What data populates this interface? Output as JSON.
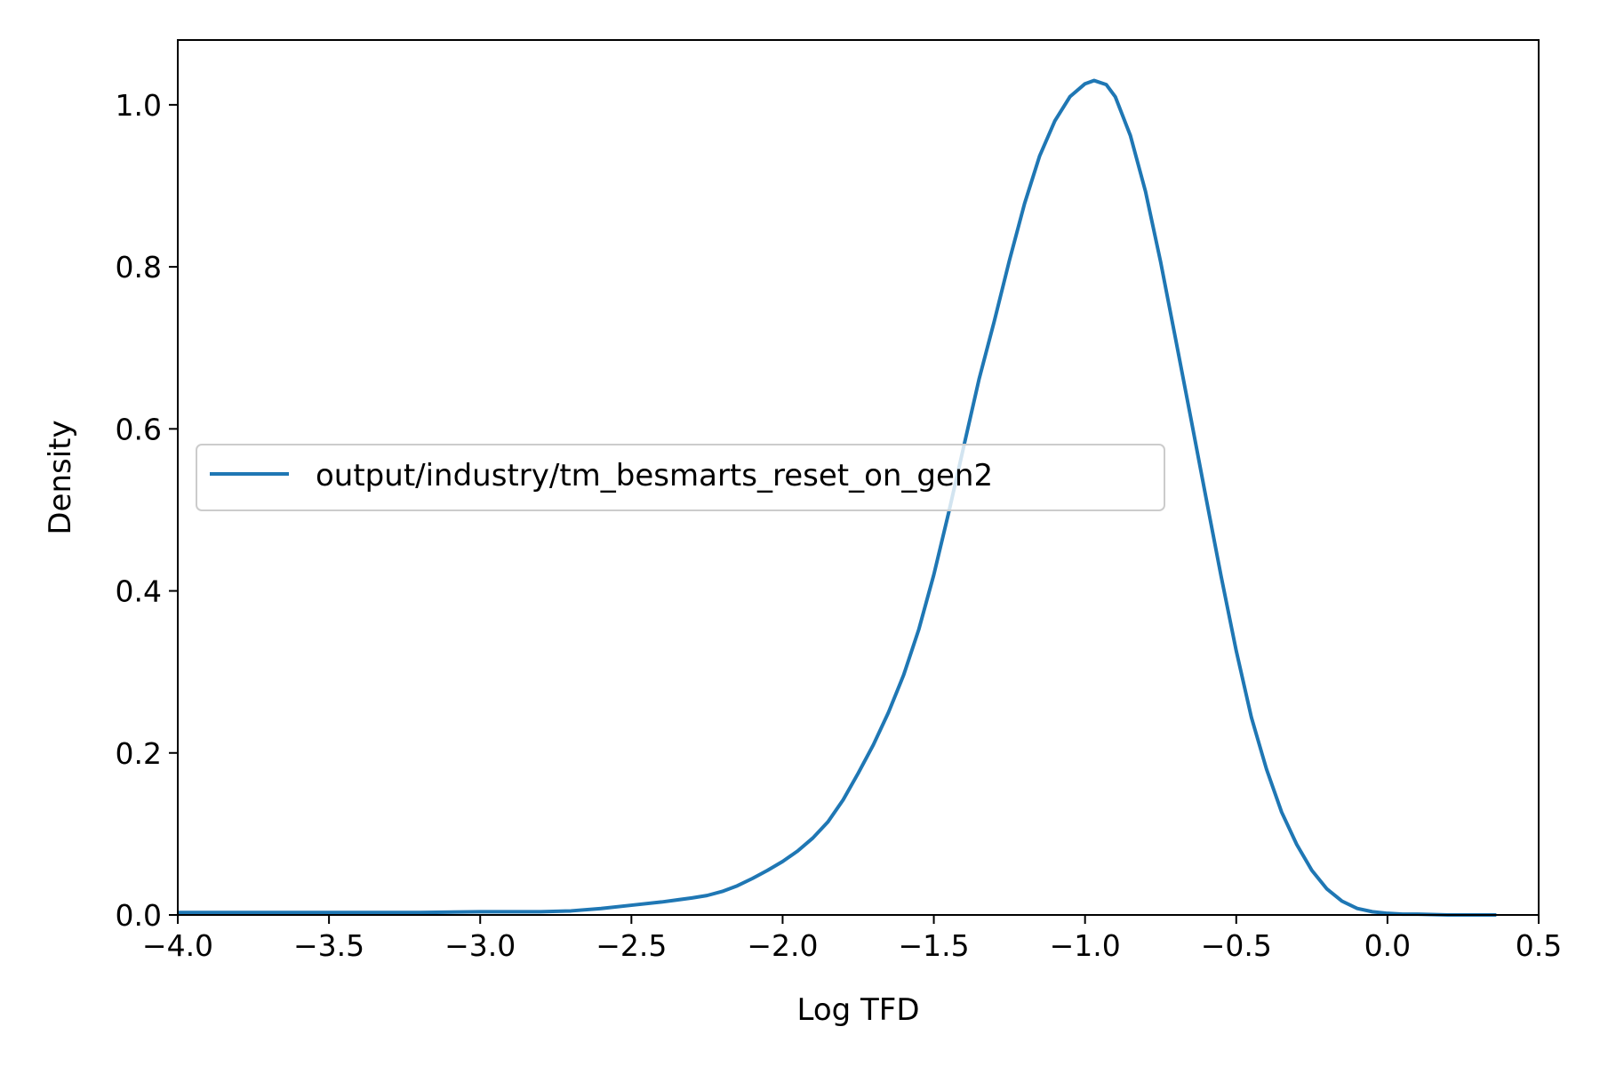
{
  "chart_data": {
    "type": "line",
    "title": "",
    "xlabel": "Log TFD",
    "ylabel": "Density",
    "xlim": [
      -4.0,
      0.5
    ],
    "ylim": [
      0.0,
      1.08
    ],
    "grid": false,
    "legend_position": "center-left",
    "x_ticks": [
      -4.0,
      -3.5,
      -3.0,
      -2.5,
      -2.0,
      -1.5,
      -1.0,
      -0.5,
      0.0,
      0.5
    ],
    "x_tick_labels": [
      "−4.0",
      "−3.5",
      "−3.0",
      "−2.5",
      "−2.0",
      "−1.5",
      "−1.0",
      "−0.5",
      "0.0",
      "0.5"
    ],
    "y_ticks": [
      0.0,
      0.2,
      0.4,
      0.6,
      0.8,
      1.0
    ],
    "y_tick_labels": [
      "0.0",
      "0.2",
      "0.4",
      "0.6",
      "0.8",
      "1.0"
    ],
    "series": [
      {
        "name": "output/industry/tm_besmarts_reset_on_gen2",
        "color": "#1f77b4",
        "x": [
          -4.0,
          -3.8,
          -3.6,
          -3.4,
          -3.2,
          -3.0,
          -2.8,
          -2.7,
          -2.6,
          -2.5,
          -2.4,
          -2.3,
          -2.25,
          -2.2,
          -2.15,
          -2.1,
          -2.05,
          -2.0,
          -1.95,
          -1.9,
          -1.85,
          -1.8,
          -1.75,
          -1.7,
          -1.65,
          -1.6,
          -1.55,
          -1.5,
          -1.45,
          -1.4,
          -1.35,
          -1.3,
          -1.25,
          -1.2,
          -1.15,
          -1.1,
          -1.05,
          -1.0,
          -0.97,
          -0.93,
          -0.9,
          -0.85,
          -0.8,
          -0.75,
          -0.7,
          -0.65,
          -0.6,
          -0.55,
          -0.5,
          -0.45,
          -0.4,
          -0.35,
          -0.3,
          -0.25,
          -0.2,
          -0.15,
          -0.1,
          -0.05,
          0.0,
          0.05,
          0.1,
          0.2,
          0.36
        ],
        "y": [
          0.003,
          0.003,
          0.003,
          0.003,
          0.003,
          0.004,
          0.004,
          0.005,
          0.008,
          0.012,
          0.016,
          0.021,
          0.024,
          0.029,
          0.036,
          0.045,
          0.055,
          0.066,
          0.079,
          0.095,
          0.115,
          0.142,
          0.175,
          0.21,
          0.25,
          0.296,
          0.352,
          0.42,
          0.498,
          0.58,
          0.662,
          0.733,
          0.808,
          0.878,
          0.937,
          0.98,
          1.01,
          1.026,
          1.03,
          1.025,
          1.01,
          0.962,
          0.893,
          0.806,
          0.71,
          0.613,
          0.515,
          0.418,
          0.326,
          0.244,
          0.18,
          0.127,
          0.087,
          0.055,
          0.032,
          0.017,
          0.008,
          0.004,
          0.002,
          0.001,
          0.001,
          0.0,
          0.0
        ]
      }
    ]
  }
}
